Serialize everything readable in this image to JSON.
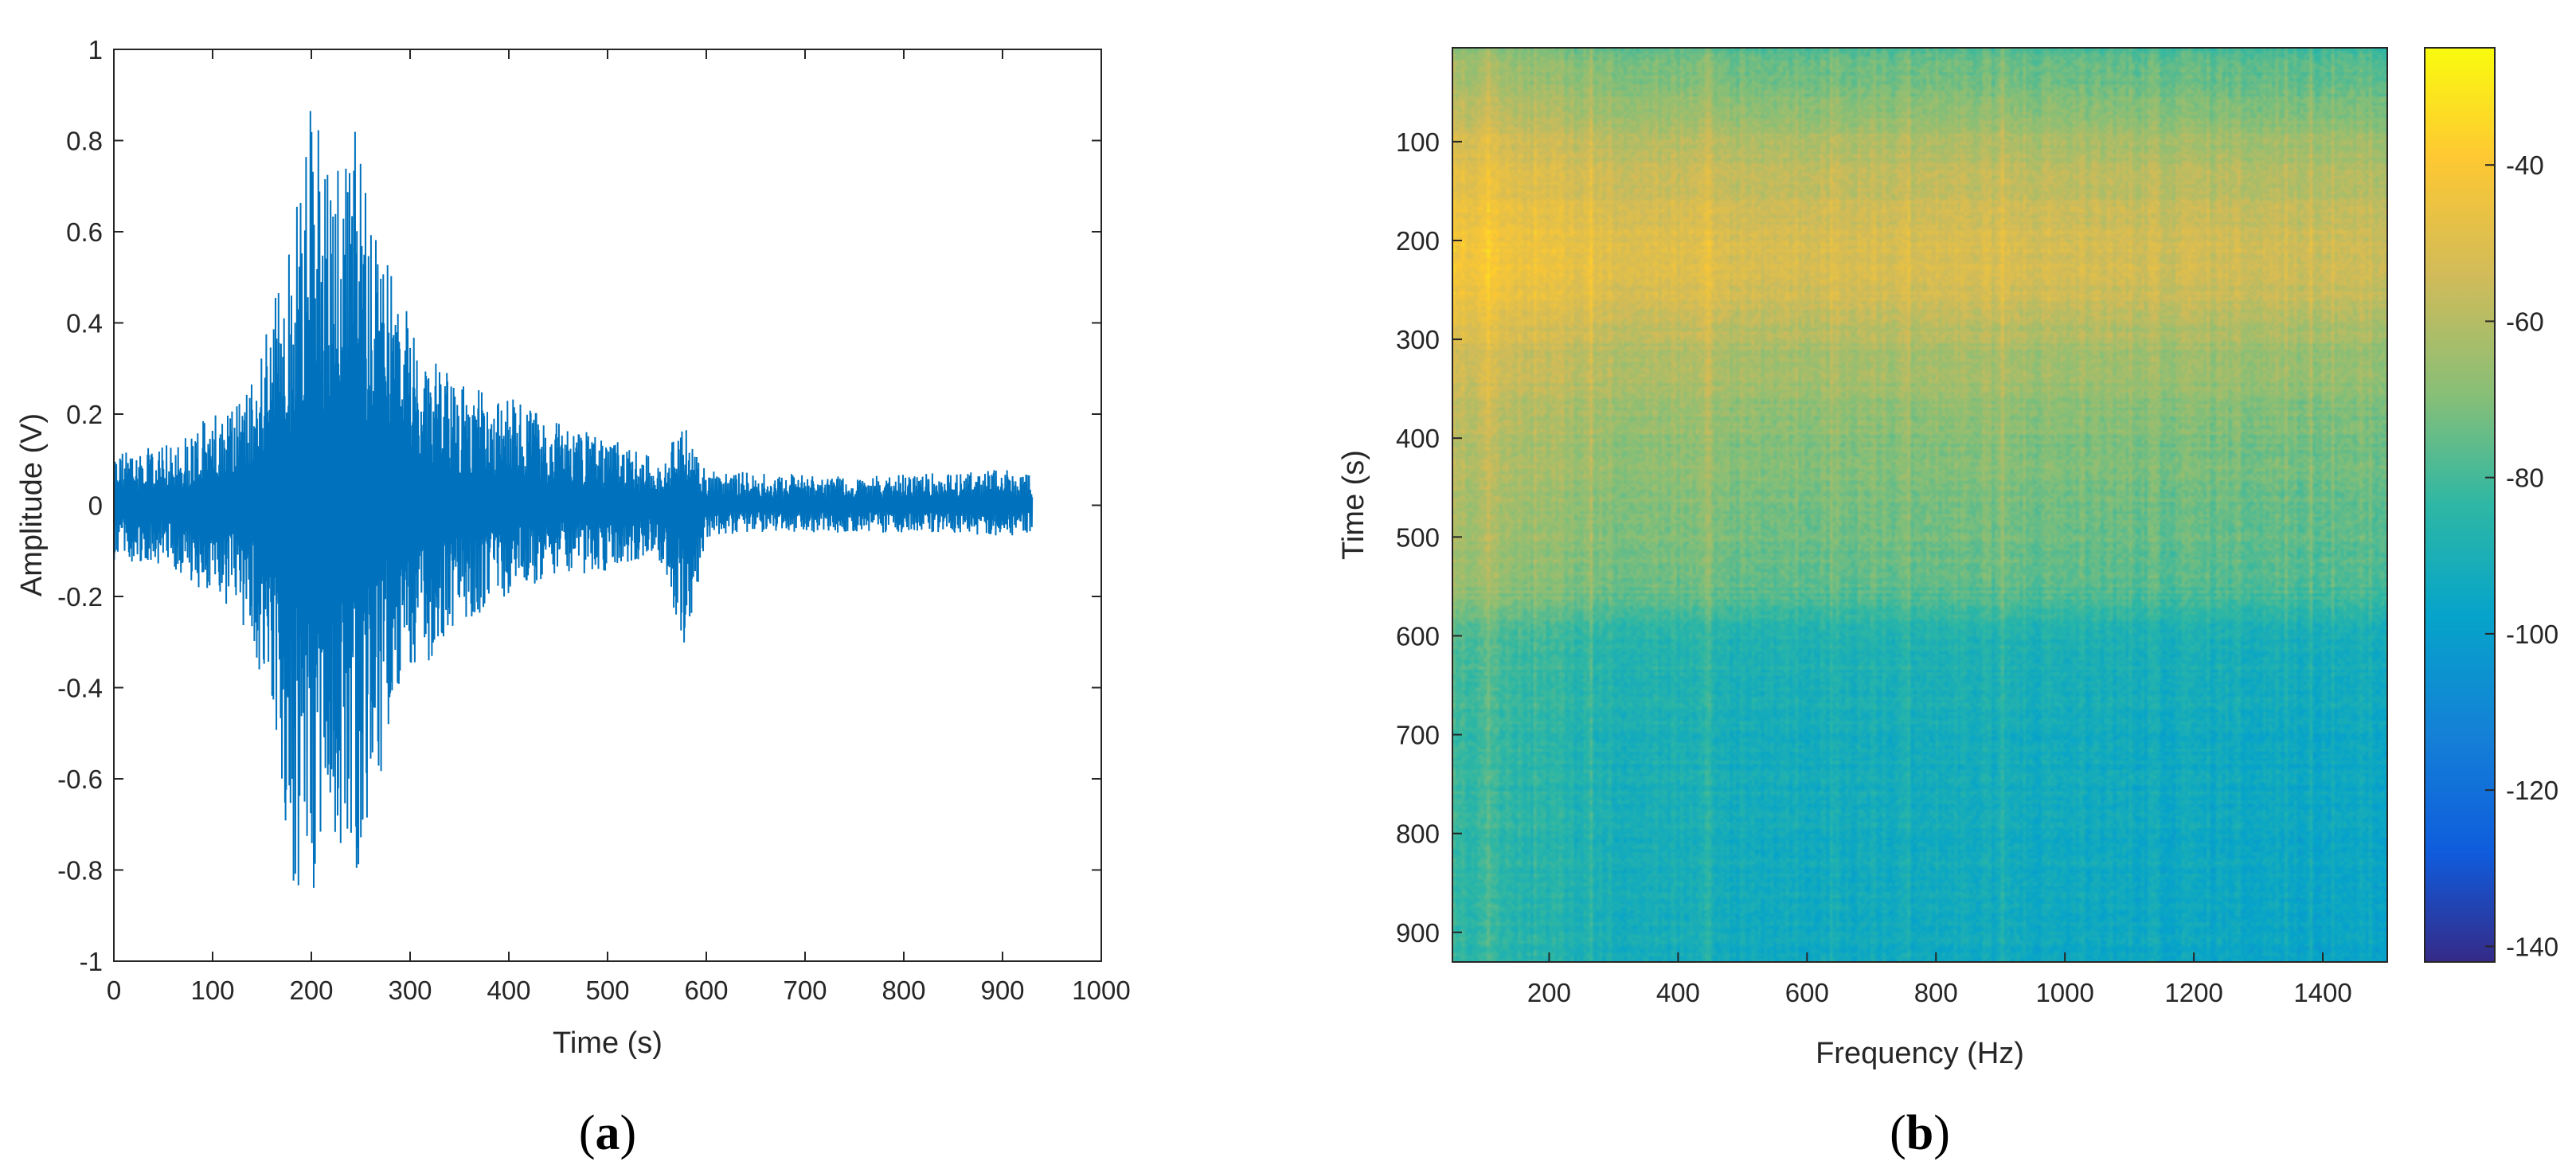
{
  "chart_data": [
    {
      "panel": "(a)",
      "type": "line",
      "xlabel": "Time (s)",
      "ylabel": "Amplitude (V)",
      "xlim": [
        0,
        1000
      ],
      "ylim": [
        -1,
        1
      ],
      "xticks": [
        0,
        100,
        200,
        300,
        400,
        500,
        600,
        700,
        800,
        900,
        1000
      ],
      "yticks": [
        -1,
        -0.8,
        -0.6,
        -0.4,
        -0.2,
        0,
        0.2,
        0.4,
        0.6,
        0.8,
        1
      ],
      "ytick_labels": [
        "-1",
        "-0.8",
        "-0.6",
        "-0.4",
        "-0.2",
        "0",
        "0.2",
        "0.4",
        "0.6",
        "0.8",
        "1"
      ],
      "grid": false,
      "series": [
        {
          "color": "#0072BD",
          "x_range": [
            0,
            930
          ],
          "envelope_x": [
            0,
            50,
            100,
            140,
            160,
            180,
            200,
            220,
            240,
            260,
            280,
            300,
            330,
            360,
            400,
            450,
            500,
            550,
            580,
            600,
            650,
            700,
            750,
            800,
            850,
            900,
            930
          ],
          "envelope_upper": [
            0.12,
            0.13,
            0.2,
            0.28,
            0.45,
            0.6,
            0.9,
            0.8,
            0.91,
            0.65,
            0.55,
            0.4,
            0.3,
            0.26,
            0.25,
            0.18,
            0.15,
            0.1,
            0.18,
            0.08,
            0.07,
            0.07,
            0.06,
            0.07,
            0.07,
            0.08,
            0.07
          ],
          "envelope_lower": [
            -0.12,
            -0.13,
            -0.2,
            -0.3,
            -0.5,
            -0.92,
            -0.85,
            -0.8,
            -0.85,
            -0.7,
            -0.5,
            -0.42,
            -0.3,
            -0.25,
            -0.2,
            -0.15,
            -0.15,
            -0.1,
            -0.34,
            -0.07,
            -0.06,
            -0.06,
            -0.06,
            -0.06,
            -0.06,
            -0.07,
            -0.06
          ]
        }
      ]
    },
    {
      "panel": "(b)",
      "type": "heatmap",
      "xlabel": "Frequency (Hz)",
      "ylabel": "Time (s)",
      "xlim": [
        50,
        1500
      ],
      "ylim": [
        930,
        5
      ],
      "xticks": [
        200,
        400,
        600,
        800,
        1000,
        1200,
        1400
      ],
      "yticks": [
        100,
        200,
        300,
        400,
        500,
        600,
        700,
        800,
        900
      ],
      "colorbar": {
        "range": [
          -142,
          -25
        ],
        "ticks": [
          -40,
          -60,
          -80,
          -100,
          -120,
          -140
        ],
        "colormap": "parula"
      },
      "time_profile": {
        "t": [
          5,
          100,
          200,
          250,
          300,
          400,
          500,
          560,
          600,
          700,
          800,
          930
        ],
        "level_db": [
          -78,
          -62,
          -52,
          -54,
          -62,
          -70,
          -73,
          -78,
          -88,
          -92,
          -93,
          -94
        ]
      },
      "frequency_profile": {
        "f": [
          50,
          120,
          200,
          300,
          500,
          800,
          1000,
          1200,
          1500
        ],
        "boost_db": [
          12,
          9,
          7,
          4,
          1,
          1,
          0,
          -1,
          -2
        ]
      }
    }
  ],
  "captions": {
    "a": "a",
    "b": "b"
  }
}
